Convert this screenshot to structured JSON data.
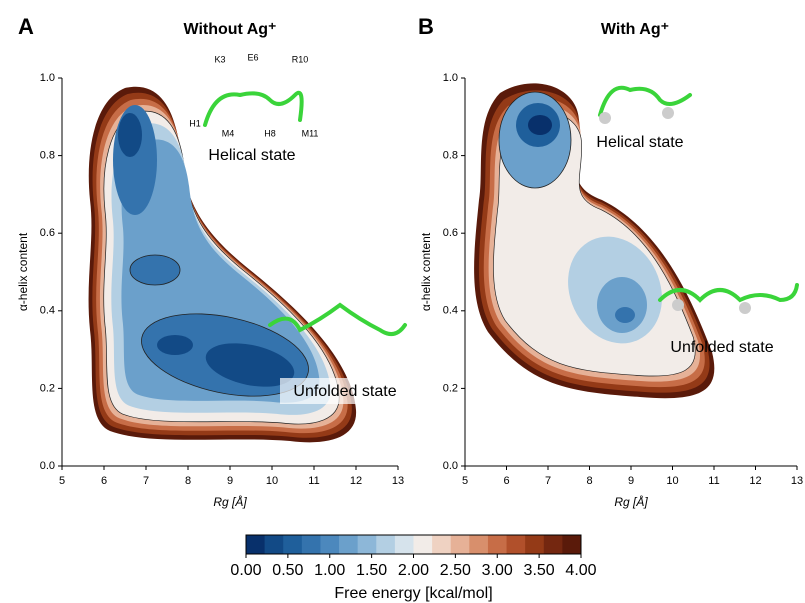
{
  "chart_data": [
    {
      "type": "contour",
      "panel_label": "A",
      "title": "Without Ag⁺",
      "xlabel": "Rg [Å]",
      "ylabel": "α-helix content",
      "xlim": [
        5,
        13
      ],
      "xticks": [
        5,
        6,
        7,
        8,
        9,
        10,
        11,
        12,
        13
      ],
      "ylim": [
        0,
        1
      ],
      "yticks": [
        {
          "value": 0,
          "label": "0.0"
        },
        {
          "value": 0.2,
          "label": "0.2"
        },
        {
          "value": 0.4,
          "label": "0.4"
        },
        {
          "value": 0.6,
          "label": "0.6"
        },
        {
          "value": 0.8,
          "label": "0.8"
        },
        {
          "value": 1,
          "label": "1.0"
        }
      ],
      "annotations": [
        "Helical state",
        "Unfolded state"
      ],
      "residues": [
        "K3",
        "E6",
        "R10",
        "H1",
        "M4",
        "H8",
        "M11"
      ]
    },
    {
      "type": "contour",
      "panel_label": "B",
      "title": "With Ag⁺",
      "xlabel": "Rg [Å]",
      "ylabel": "α-helix content",
      "xlim": [
        5,
        13
      ],
      "xticks": [
        5,
        6,
        7,
        8,
        9,
        10,
        11,
        12,
        13
      ],
      "ylim": [
        0,
        1
      ],
      "yticks": [
        {
          "value": 0,
          "label": "0.0"
        },
        {
          "value": 0.2,
          "label": "0.2"
        },
        {
          "value": 0.4,
          "label": "0.4"
        },
        {
          "value": 0.6,
          "label": "0.6"
        },
        {
          "value": 0.8,
          "label": "0.8"
        },
        {
          "value": 1,
          "label": "1.0"
        }
      ],
      "annotations": [
        "Helical state",
        "Unfolded state"
      ]
    }
  ],
  "colorbar": {
    "label": "Free energy [kcal/mol]",
    "lim": [
      0,
      4
    ],
    "ticks": [
      {
        "value": 0,
        "label": "0.00"
      },
      {
        "value": 0.5,
        "label": "0.50"
      },
      {
        "value": 1,
        "label": "1.00"
      },
      {
        "value": 1.5,
        "label": "1.50"
      },
      {
        "value": 2,
        "label": "2.00"
      },
      {
        "value": 2.5,
        "label": "2.50"
      },
      {
        "value": 3,
        "label": "3.00"
      },
      {
        "value": 3.5,
        "label": "3.50"
      },
      {
        "value": 4,
        "label": "4.00"
      }
    ],
    "colors": [
      "#08306b",
      "#124a86",
      "#1f5f9b",
      "#3473ad",
      "#4c88bd",
      "#6ba0cb",
      "#8db7d8",
      "#b3cfe3",
      "#d6e3ec",
      "#f2ece8",
      "#efd2c2",
      "#e6b197",
      "#d88f6c",
      "#c76d47",
      "#b1502b",
      "#943a17",
      "#742710",
      "#5a1a0a"
    ]
  }
}
